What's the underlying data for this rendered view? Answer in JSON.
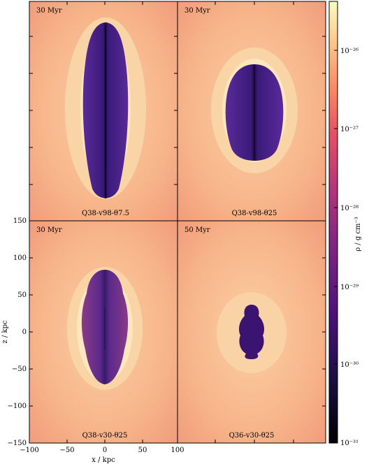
{
  "figure": {
    "panels": [
      {
        "id": "tl",
        "time": "30 Myr",
        "name": "Q38-v98-θ7.5"
      },
      {
        "id": "tr",
        "time": "30 Myr",
        "name": "Q38-v98-θ25"
      },
      {
        "id": "bl",
        "time": "30 Myr",
        "name": "Q38-v30-θ25"
      },
      {
        "id": "br",
        "time": "50 Myr",
        "name": "Q36-v30-θ25"
      }
    ],
    "xaxis_label": "x / kpc",
    "yaxis_label": "z / kpc",
    "x_ticks": [
      "−100",
      "−50",
      "0",
      "50",
      "100"
    ],
    "y_ticks": [
      "150",
      "100",
      "50",
      "0",
      "−50",
      "−100",
      "−150"
    ],
    "colorbar": {
      "label": "ρ / g cm⁻³",
      "ticks": [
        "10⁻²⁶",
        "10⁻²⁷",
        "10⁻²⁸",
        "10⁻²⁹",
        "10⁻³⁰",
        "10⁻³¹"
      ]
    }
  }
}
